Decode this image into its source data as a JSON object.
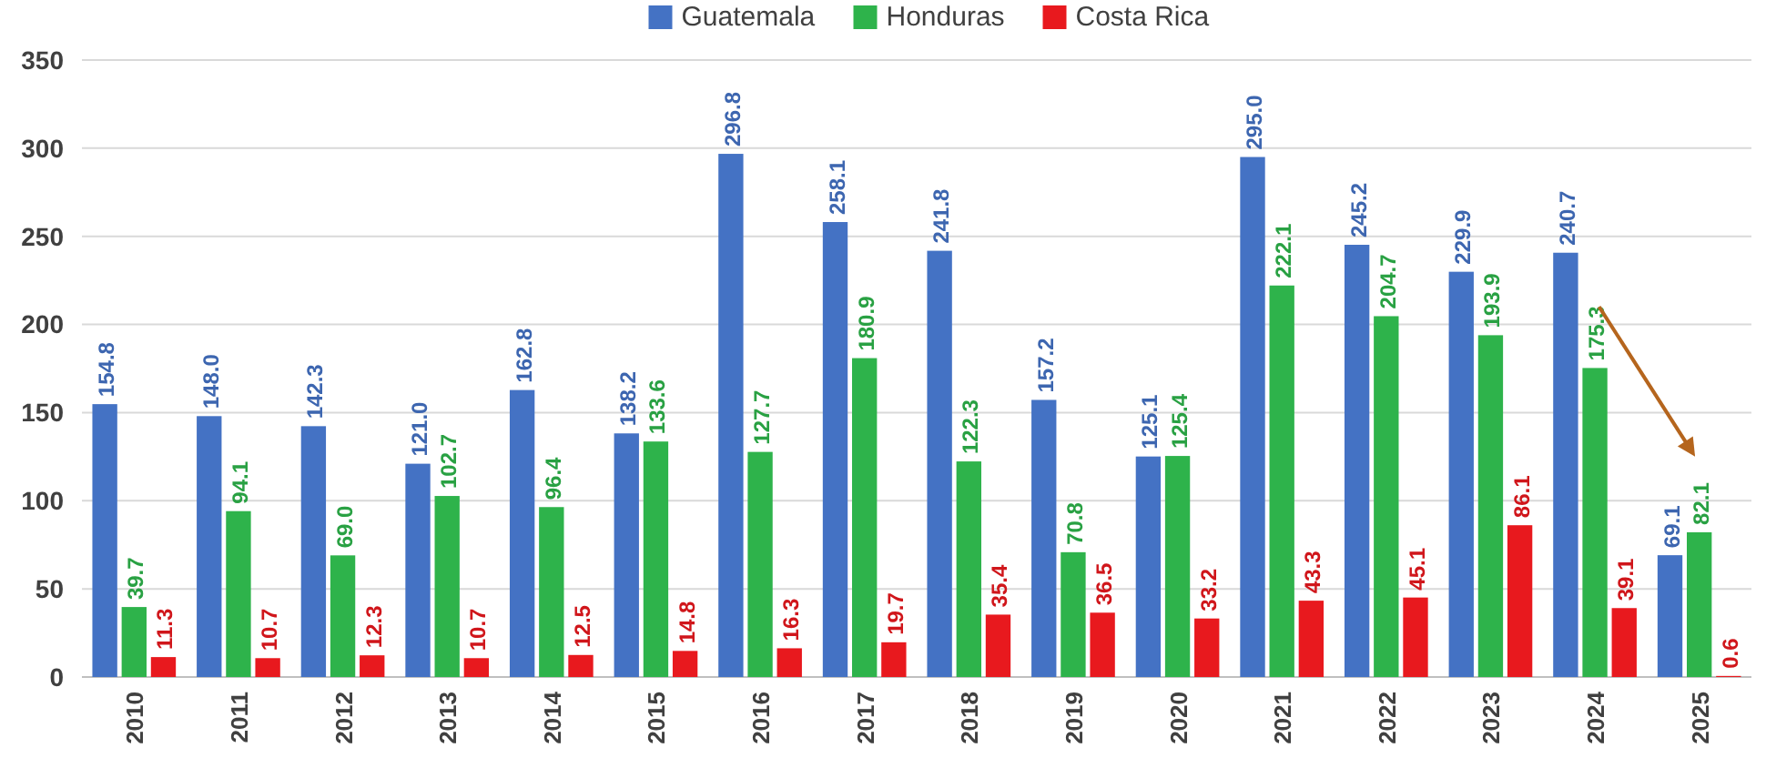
{
  "chart_data": {
    "type": "bar",
    "categories": [
      "2010",
      "2011",
      "2012",
      "2013",
      "2014",
      "2015",
      "2016",
      "2017",
      "2018",
      "2019",
      "2020",
      "2021",
      "2022",
      "2023",
      "2024",
      "2025"
    ],
    "series": [
      {
        "name": "Guatemala",
        "color": "#4472c4",
        "values": [
          154.8,
          148.0,
          142.3,
          121.0,
          162.8,
          138.2,
          296.8,
          258.1,
          241.8,
          157.2,
          125.1,
          295.0,
          245.2,
          229.9,
          240.7,
          69.1
        ],
        "value_labels": [
          "154.8",
          "148.0",
          "142.3",
          "121.0",
          "162.8",
          "138.2",
          "296.8",
          "258.1",
          "241.8",
          "157.2",
          "125.1",
          "295.0",
          "245.2",
          "229.9",
          "240.7",
          "69.1"
        ]
      },
      {
        "name": "Honduras",
        "color": "#2eb34b",
        "values": [
          39.7,
          94.1,
          69.0,
          102.7,
          96.4,
          133.6,
          127.7,
          180.9,
          122.3,
          70.8,
          125.4,
          222.1,
          204.7,
          193.9,
          175.3,
          82.1
        ],
        "value_labels": [
          "39.7",
          "94.1",
          "69.0",
          "102.7",
          "96.4",
          "133.6",
          "127.7",
          "180.9",
          "122.3",
          "70.8",
          "125.4",
          "222.1",
          "204.7",
          "193.9",
          "175.3",
          "82.1"
        ]
      },
      {
        "name": "Costa Rica",
        "color": "#e8191e",
        "values": [
          11.3,
          10.7,
          12.3,
          10.7,
          12.5,
          14.8,
          16.3,
          19.7,
          35.4,
          36.5,
          33.2,
          43.3,
          45.1,
          86.1,
          39.1,
          0.6
        ],
        "value_labels": [
          "11.3",
          "10.7",
          "12.3",
          "10.7",
          "12.5",
          "14.8",
          "16.3",
          "19.7",
          "35.4",
          "36.5",
          "33.2",
          "43.3",
          "45.1",
          "86.1",
          "39.1",
          "0.6"
        ]
      }
    ],
    "ylim": [
      0,
      350
    ],
    "yticks": [
      0,
      50,
      100,
      150,
      200,
      250,
      300,
      350
    ],
    "grid": "y",
    "legend": "top"
  }
}
